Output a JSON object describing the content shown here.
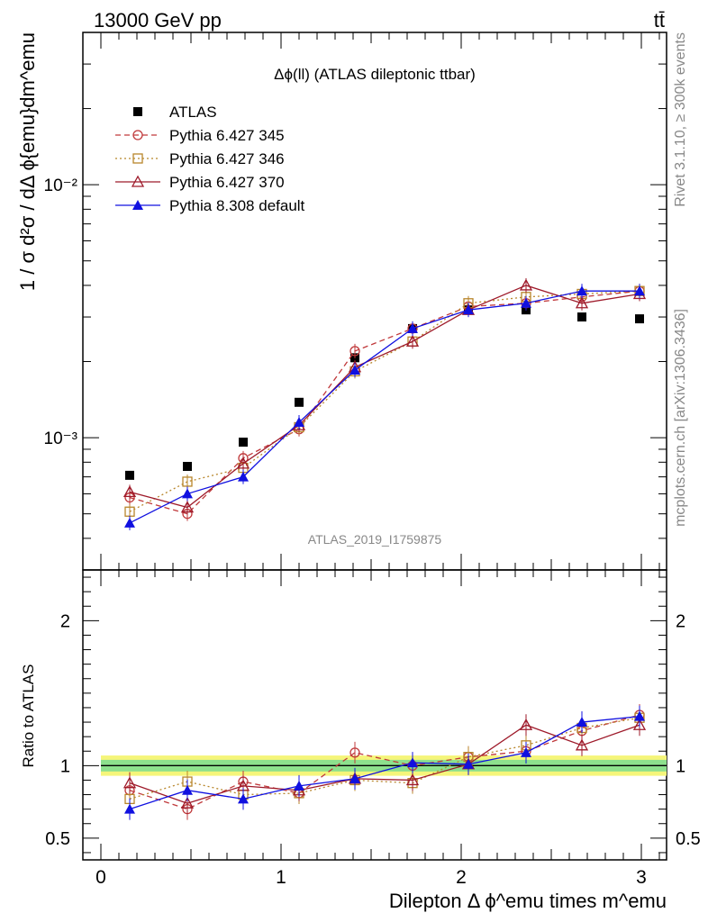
{
  "header": {
    "left": "13000 GeV pp",
    "right": "tt̄"
  },
  "side_text": {
    "rivet": "Rivet 3.1.10, ≥ 300k events",
    "mcplots": "mcplots.cern.ch [arXiv:1306.3436]"
  },
  "chart_data": [
    {
      "type": "line",
      "panel": "main",
      "title": "Δϕ(ll) (ATLAS dileptonic ttbar)",
      "ylabel": "1 / σ  d²σ / dΔ ϕ{emu}dm^emu",
      "yscale": "log",
      "ylim": [
        0.0003,
        0.04
      ],
      "xlim": [
        -0.1,
        3.14
      ],
      "analysis_label": "ATLAS_2019_I1759875",
      "y_ticks": [
        {
          "v": 0.001,
          "label": "10⁻³"
        },
        {
          "v": 0.01,
          "label": "10⁻²"
        }
      ],
      "x": [
        0.16,
        0.48,
        0.79,
        1.1,
        1.41,
        1.73,
        2.04,
        2.36,
        2.67,
        2.99
      ],
      "legend_position": "top-left",
      "series": [
        {
          "name": "ATLAS",
          "color": "#000000",
          "marker": "square-filled",
          "line": "none",
          "values": [
            0.00071,
            0.00077,
            0.00096,
            0.00138,
            0.00207,
            0.0027,
            0.0032,
            0.0032,
            0.003,
            0.00295
          ]
        },
        {
          "name": "Pythia 6.427 345",
          "color": "#c0393b",
          "marker": "circle-open",
          "line": "dashed",
          "values": [
            0.00058,
            0.0005,
            0.00083,
            0.00108,
            0.0022,
            0.0027,
            0.0033,
            0.0034,
            0.0036,
            0.0038
          ]
        },
        {
          "name": "Pythia 6.427 346",
          "color": "#b8862b",
          "marker": "square-open",
          "line": "dotted",
          "values": [
            0.00051,
            0.00067,
            0.00076,
            0.0011,
            0.00183,
            0.0024,
            0.0034,
            0.0036,
            0.0037,
            0.0038
          ]
        },
        {
          "name": "Pythia 6.427 370",
          "color": "#9e1a2a",
          "marker": "triangle-open",
          "line": "solid",
          "values": [
            0.00061,
            0.00053,
            0.00079,
            0.00112,
            0.0019,
            0.0024,
            0.0032,
            0.004,
            0.0034,
            0.0037
          ]
        },
        {
          "name": "Pythia 8.308 default",
          "color": "#1010e0",
          "marker": "triangle-filled",
          "line": "solid",
          "values": [
            0.00046,
            0.0006,
            0.0007,
            0.00115,
            0.00185,
            0.0027,
            0.0032,
            0.0034,
            0.0038,
            0.0038
          ]
        }
      ]
    },
    {
      "type": "line",
      "panel": "ratio",
      "ylabel": "Ratio to ATLAS",
      "xlabel": "Dilepton Δ ϕ^emu times m^emu",
      "ylim": [
        0.35,
        2.35
      ],
      "xlim": [
        -0.1,
        3.14
      ],
      "y_ticks": [
        {
          "v": 0.5,
          "label": "0.5"
        },
        {
          "v": 1,
          "label": "1"
        },
        {
          "v": 2,
          "label": "2"
        }
      ],
      "x_ticks": [
        {
          "v": 0,
          "label": "0"
        },
        {
          "v": 1,
          "label": "1"
        },
        {
          "v": 2,
          "label": "2"
        },
        {
          "v": 3,
          "label": "3"
        }
      ],
      "x": [
        0.16,
        0.48,
        0.79,
        1.1,
        1.41,
        1.73,
        2.04,
        2.36,
        2.67,
        2.99
      ],
      "reference": 1,
      "band_yellow": [
        0.93,
        1.07
      ],
      "band_green": [
        0.96,
        1.04
      ],
      "series": [
        {
          "name": "Pythia 6.427 345",
          "values": [
            0.83,
            0.7,
            0.89,
            0.81,
            1.09,
            1.0,
            1.06,
            1.1,
            1.24,
            1.35
          ]
        },
        {
          "name": "Pythia 6.427 346",
          "values": [
            0.77,
            0.89,
            0.8,
            0.81,
            0.9,
            0.88,
            1.06,
            1.14,
            1.26,
            1.33
          ]
        },
        {
          "name": "Pythia 6.427 370",
          "values": [
            0.88,
            0.74,
            0.86,
            0.83,
            0.91,
            0.9,
            1.01,
            1.28,
            1.14,
            1.28
          ]
        },
        {
          "name": "Pythia 8.308 default",
          "values": [
            0.7,
            0.83,
            0.77,
            0.86,
            0.91,
            1.02,
            1.01,
            1.09,
            1.3,
            1.34
          ]
        }
      ]
    }
  ]
}
